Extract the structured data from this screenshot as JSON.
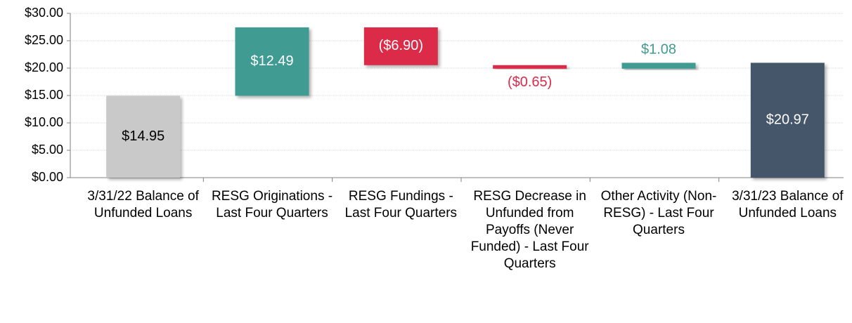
{
  "chart_data": {
    "type": "waterfall",
    "categories": [
      "3/31/22 Balance of Unfunded Loans",
      "RESG Originations - Last Four Quarters",
      "RESG Fundings - Last Four Quarters",
      "RESG Decrease in Unfunded from Payoffs (Never Funded) - Last Four Quarters",
      "Other Activity (Non-RESG) - Last Four Quarters",
      "3/31/23 Balance of Unfunded Loans"
    ],
    "measure": [
      "absolute",
      "relative",
      "relative",
      "relative",
      "relative",
      "absolute"
    ],
    "values": [
      14.95,
      12.49,
      -6.9,
      -0.65,
      1.08,
      20.97
    ],
    "value_labels": [
      "$14.95",
      "$12.49",
      "($6.90)",
      "($0.65)",
      "$1.08",
      "$20.97"
    ],
    "colors": [
      "#c9c9c9",
      "#3f9b92",
      "#dc2a4a",
      "#dc2a4a",
      "#3f9b92",
      "#44546a"
    ],
    "ylim": [
      0,
      30
    ],
    "yticks": [
      {
        "value": 0,
        "label": "$0.00"
      },
      {
        "value": 5,
        "label": "$5.00"
      },
      {
        "value": 10,
        "label": "$10.00"
      },
      {
        "value": 15,
        "label": "$15.00"
      },
      {
        "value": 20,
        "label": "$20.00"
      },
      {
        "value": 25,
        "label": "$25.00"
      },
      {
        "value": 30,
        "label": "$30.00"
      }
    ],
    "grid": true
  }
}
